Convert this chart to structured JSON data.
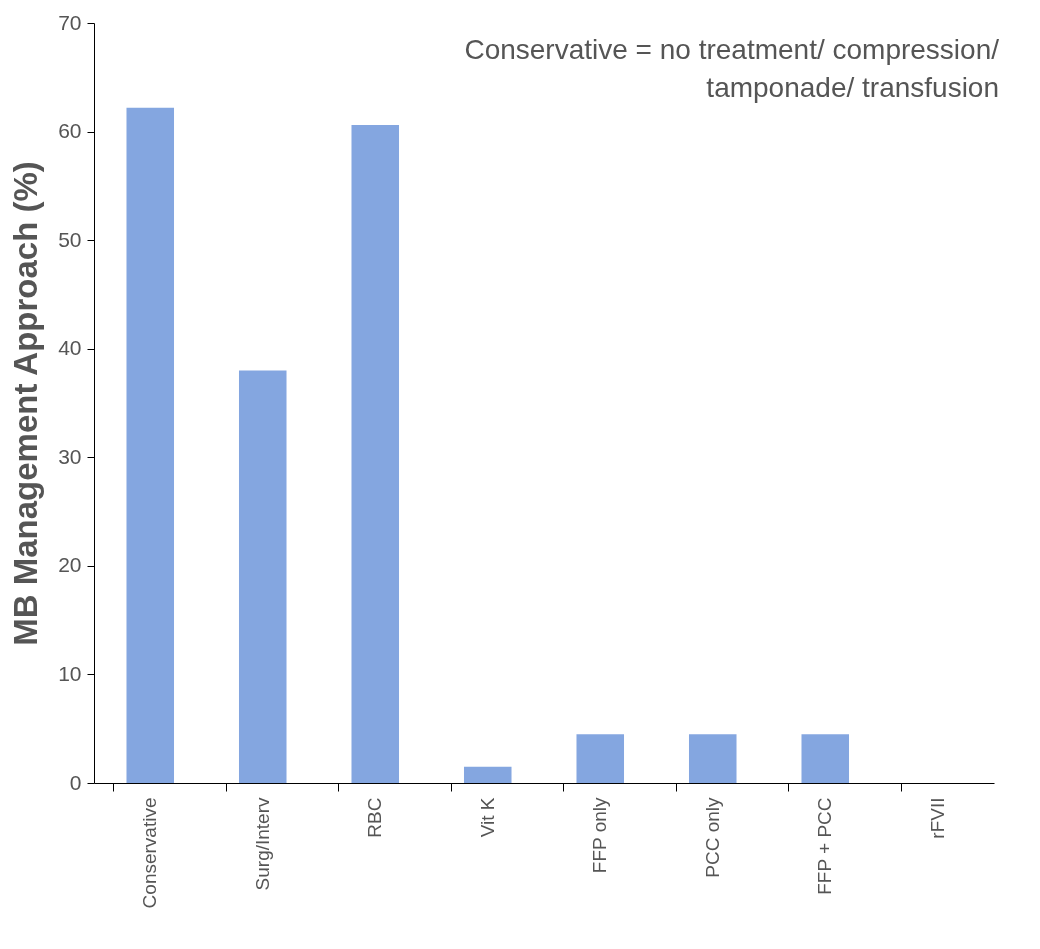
{
  "chart_data": {
    "type": "bar",
    "ylabel": "MB Management Approach (%)",
    "categories": [
      "Conservative",
      "Surg/Interv",
      "RBC",
      "Vit K",
      "FFP only",
      "PCC only",
      "FFP + PCC",
      "rFVII"
    ],
    "values": [
      62.2,
      38,
      60.6,
      1.5,
      4.5,
      4.5,
      4.5,
      0
    ],
    "color": "#84a6e0",
    "ylim": [
      0,
      70
    ],
    "yticks": [
      0,
      10,
      20,
      30,
      40,
      50,
      60,
      70
    ],
    "grid": false,
    "annotations": [
      "Conservative = no treatment/ compression/\n              tamponade/ transfusion"
    ]
  }
}
